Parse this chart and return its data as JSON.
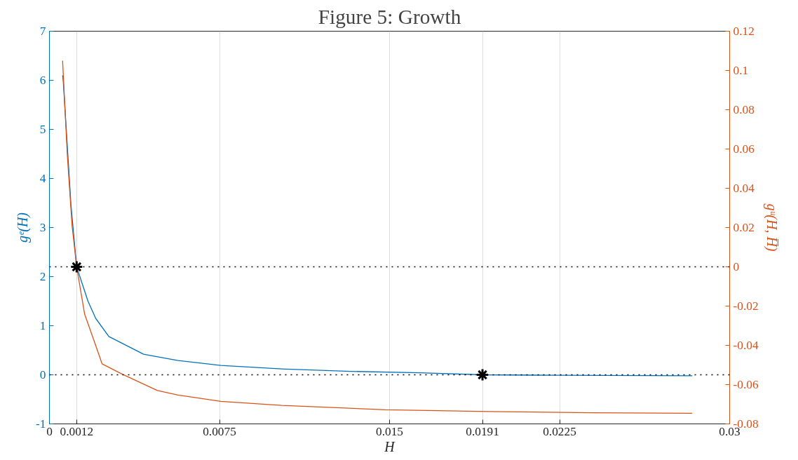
{
  "chart_data": {
    "type": "line",
    "title": "Figure 5: Growth",
    "xlabel": "H",
    "ylabel": "gᵉ(H)",
    "y2label": "gᵘ(H, H̅)",
    "xlim": [
      0,
      0.03
    ],
    "xticks": [
      0,
      0.0012,
      0.0075,
      0.015,
      0.0191,
      0.0225,
      0.03
    ],
    "ylim": [
      -1,
      7
    ],
    "yticks": [
      -1,
      0,
      1,
      2,
      3,
      4,
      5,
      6,
      7
    ],
    "y2lim": [
      -0.08,
      0.12
    ],
    "y2ticks": [
      -0.08,
      -0.06,
      -0.04,
      -0.02,
      0,
      0.02,
      0.04,
      0.06,
      0.08,
      0.1,
      0.12
    ],
    "grid": "x",
    "line_style": "solid",
    "ref_lines": [
      {
        "axis": "y",
        "value": 0,
        "line_style": "dotted",
        "color": "#000000"
      },
      {
        "axis": "y",
        "value": 2.2,
        "line_style": "dotted",
        "color": "#000000"
      }
    ],
    "series": [
      {
        "axis": "y",
        "color": "#0072bd",
        "x": [
          0.00058,
          0.00061,
          0.00095,
          0.0012,
          0.0017,
          0.00204,
          0.00262,
          0.00415,
          0.00567,
          0.00756,
          0.01024,
          0.0133,
          0.01634,
          0.0191,
          0.02244,
          0.02835
        ],
        "values": [
          6.1,
          5.98,
          3.46,
          2.2,
          1.5,
          1.15,
          0.78,
          0.42,
          0.29,
          0.19,
          0.12,
          0.07,
          0.04,
          0,
          -0.01,
          -0.02
        ]
      },
      {
        "axis": "y2",
        "color": "#d95319",
        "x": [
          0.00058,
          0.00061,
          0.00079,
          0.001,
          0.0012,
          0.00155,
          0.00204,
          0.00232,
          0.00323,
          0.00476,
          0.00567,
          0.00756,
          0.01024,
          0.01482,
          0.01939,
          0.02396,
          0.02835
        ],
        "values": [
          0.105,
          0.098,
          0.0567,
          0.0207,
          0,
          -0.024,
          -0.04,
          -0.0494,
          -0.0548,
          -0.063,
          -0.0653,
          -0.0685,
          -0.0706,
          -0.0728,
          -0.0737,
          -0.0743,
          -0.0746
        ]
      },
      {
        "type": "scatter",
        "axis": "y",
        "color": "#000000",
        "marker": "cross",
        "x": [
          0.0012,
          0.0191
        ],
        "values": [
          2.2,
          0
        ]
      }
    ]
  }
}
